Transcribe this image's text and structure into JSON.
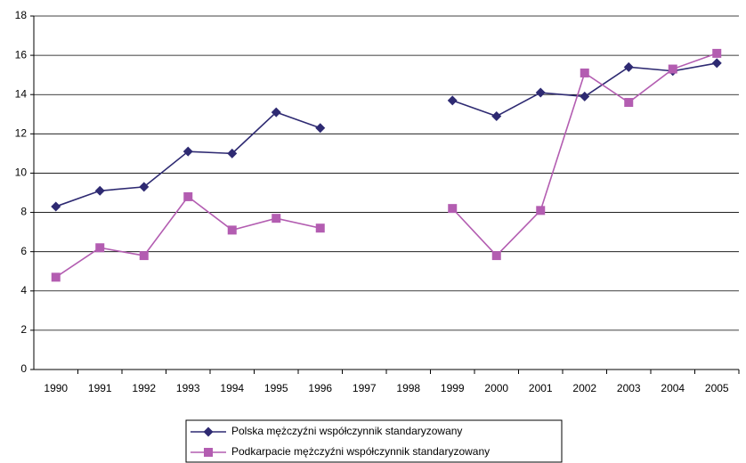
{
  "chart_data": {
    "type": "line",
    "categories": [
      "1990",
      "1991",
      "1992",
      "1993",
      "1994",
      "1995",
      "1996",
      "1997",
      "1998",
      "1999",
      "2000",
      "2001",
      "2002",
      "2003",
      "2004",
      "2005"
    ],
    "series": [
      {
        "name": "Polska mężczyźni współczynnik standaryzowany",
        "color": "#2e2a72",
        "marker": "diamond",
        "values": [
          8.3,
          9.1,
          9.3,
          11.1,
          11.0,
          13.1,
          12.3,
          null,
          null,
          13.7,
          12.9,
          14.1,
          13.9,
          15.4,
          15.2,
          15.6
        ]
      },
      {
        "name": "Podkarpacie mężczyźni współczynnik standaryzowany",
        "color": "#b35db1",
        "marker": "square",
        "values": [
          4.7,
          6.2,
          5.8,
          8.8,
          7.1,
          7.7,
          7.2,
          null,
          null,
          8.2,
          5.8,
          8.1,
          15.1,
          13.6,
          15.3,
          16.1
        ]
      }
    ],
    "ylim": [
      0,
      18
    ],
    "yticks": [
      0,
      2,
      4,
      6,
      8,
      10,
      12,
      14,
      16,
      18
    ],
    "grid": true
  }
}
